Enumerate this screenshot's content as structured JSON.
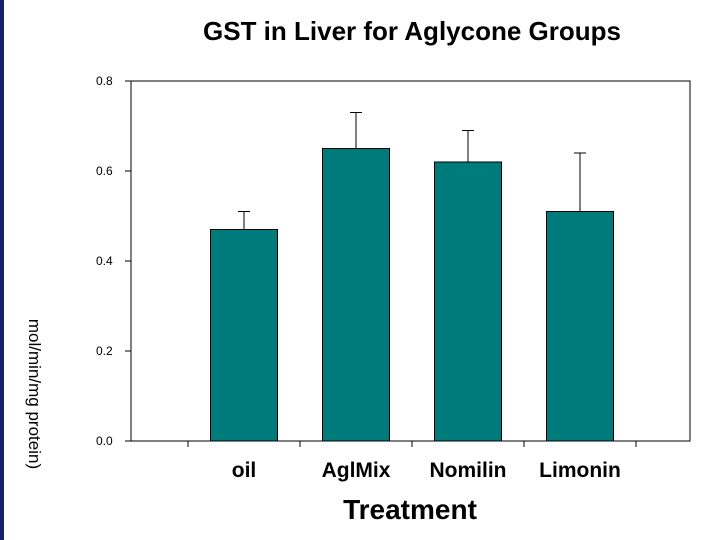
{
  "chart_data": {
    "type": "bar",
    "title": "GST in Liver for Aglycone Groups",
    "xlabel": "Treatment",
    "ylabel": "mol/min/mg protein)",
    "categories": [
      "oil",
      "AglMix",
      "Nomilin",
      "Limonin"
    ],
    "values": [
      0.47,
      0.65,
      0.62,
      0.51
    ],
    "error_upper": [
      0.51,
      0.73,
      0.69,
      0.64
    ],
    "ylim": [
      0.0,
      0.8
    ],
    "yticks": [
      "0.0",
      "0.2",
      "0.4",
      "0.6",
      "0.8"
    ],
    "grid": false,
    "bar_color": "#007b7b"
  },
  "colors": {
    "accent_rule": "#1c1f6b"
  }
}
